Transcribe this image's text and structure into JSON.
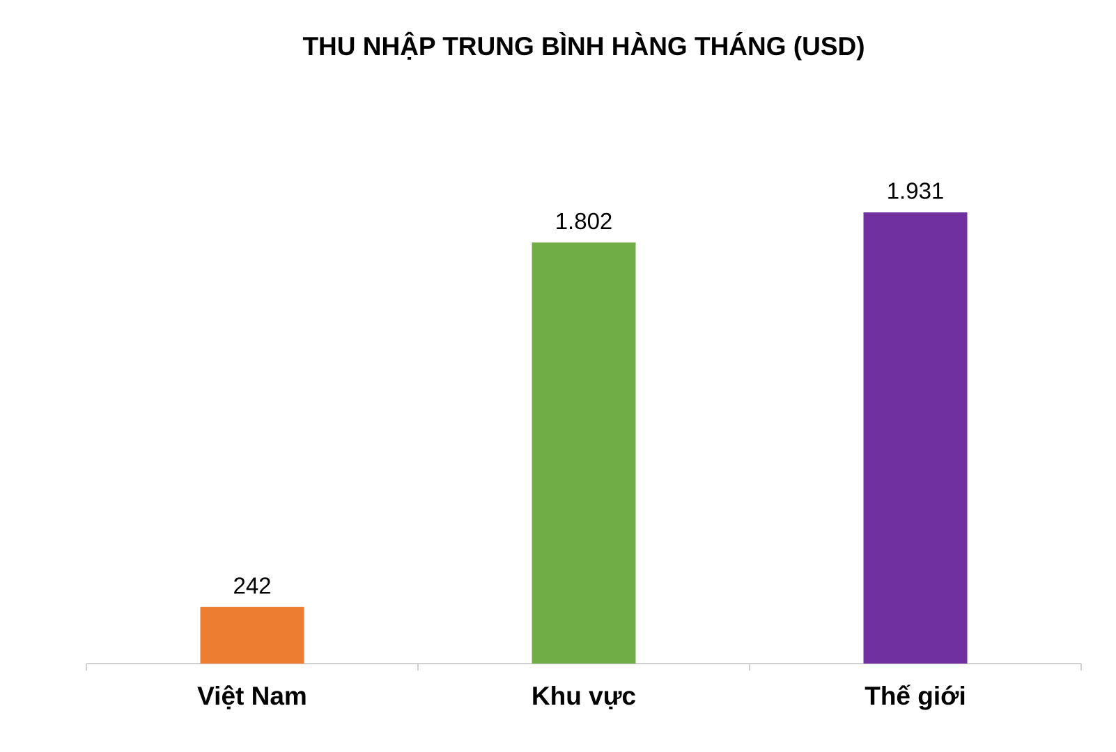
{
  "chart_data": {
    "type": "bar",
    "title": "THU NHẬP TRUNG BÌNH HÀNG THÁNG (USD)",
    "categories": [
      "Việt Nam",
      "Khu vực",
      "Thế giới"
    ],
    "values": [
      242,
      1802,
      1931
    ],
    "value_labels": [
      "242",
      "1.802",
      "1.931"
    ],
    "colors": [
      "#ed7d31",
      "#70ad47",
      "#7030a0"
    ]
  }
}
